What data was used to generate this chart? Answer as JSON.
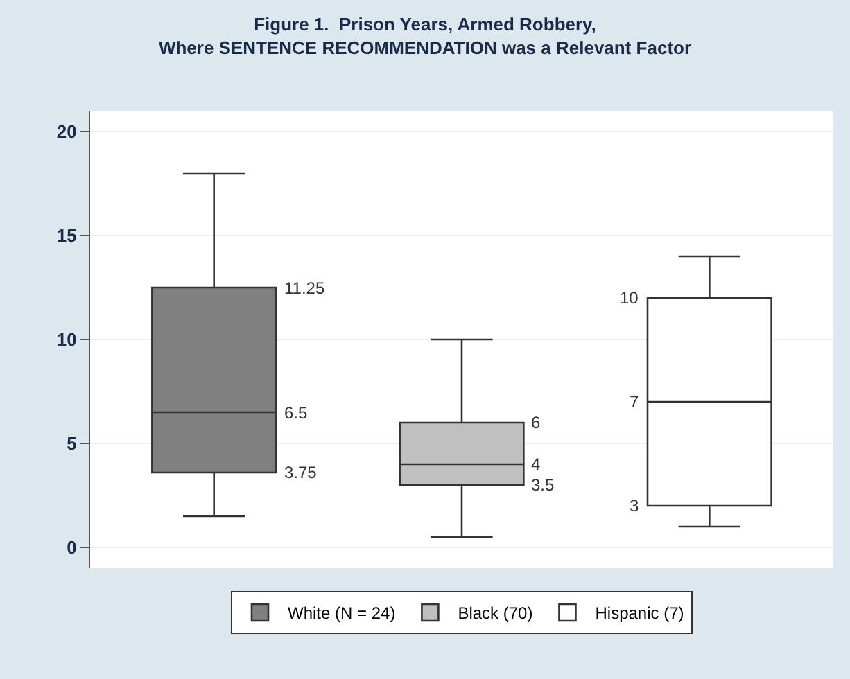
{
  "chart_data": {
    "type": "box",
    "title": "Figure 1.  Prison Years, Armed Robbery,\nWhere SENTENCE RECOMMENDATION was a Relevant Factor",
    "categories": [
      null,
      null,
      null
    ],
    "series": [
      {
        "name": "White (N = 24)",
        "color": "#808080",
        "boxes": [
          {
            "low": 1.5,
            "q1": 3.6,
            "median": 6.5,
            "q3": 12.5,
            "high": 18
          },
          null,
          null
        ]
      },
      {
        "name": "Black (70)",
        "color": "#c0c0c0",
        "boxes": [
          null,
          {
            "low": 0.5,
            "q1": 3,
            "median": 4,
            "q3": 6,
            "high": 10
          },
          null
        ]
      },
      {
        "name": "Hispanic (7)",
        "color": "#ffffff",
        "boxes": [
          null,
          null,
          {
            "low": 1,
            "q1": 2,
            "median": 7,
            "q3": 12,
            "high": 14
          }
        ]
      }
    ],
    "annotations": [
      "11.25",
      "6.5",
      "3.75",
      "6",
      "4",
      "3.5",
      "10",
      "7",
      "3"
    ],
    "ylim": [
      -1,
      21
    ],
    "yticks": [
      0,
      5,
      10,
      15,
      20
    ],
    "grid": "y",
    "legend": "bottom",
    "tick_labels": "y"
  }
}
